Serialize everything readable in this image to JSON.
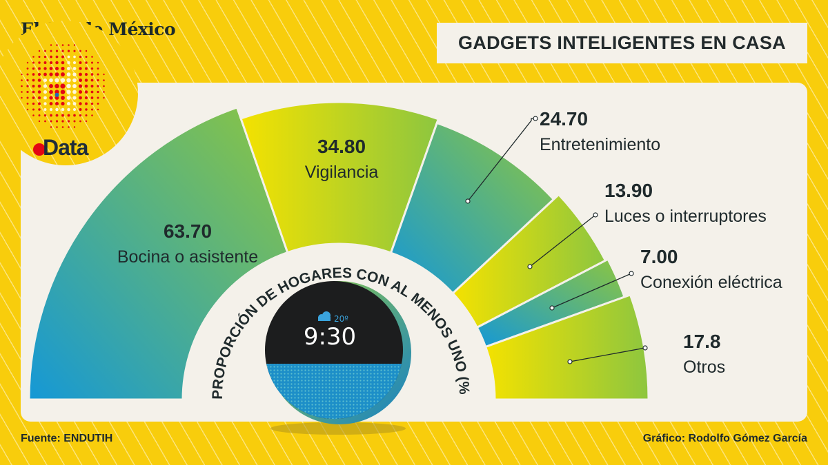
{
  "brand": {
    "masthead": "El Sol de México",
    "section": "Data"
  },
  "title": "GADGETS INTELIGENTES EN CASA",
  "footer": {
    "source": "Fuente: ENDUTIH",
    "credit": "Gráfico: Rodolfo Gómez García"
  },
  "device": {
    "time": "9:30",
    "temperature": "20º",
    "icon": "cloud-rain-icon"
  },
  "colors": {
    "background": "#f8cd0c",
    "card": "#f4f1ea",
    "blue": "#1598d6",
    "green": "#8dc63f",
    "yellow": "#f4e200",
    "text": "#1f2a2c",
    "red": "#e30613"
  },
  "chart_data": {
    "type": "pie",
    "variant": "semicircle",
    "title": "PROPORCIÓN DE HOGARES CON AL MENOS UNO (%)",
    "categories": [
      "Bocina o asistente",
      "Vigilancia",
      "Entretenimiento",
      "Luces o interruptores",
      "Conexión eléctrica",
      "Otros"
    ],
    "values": [
      63.7,
      34.8,
      24.7,
      13.9,
      7.0,
      17.8
    ],
    "value_labels": [
      "63.70",
      "34.80",
      "24.70",
      "13.90",
      "7.00",
      "17.8"
    ],
    "gradients": [
      "blue-green",
      "yellow-green",
      "blue-green",
      "yellow-green",
      "blue-green",
      "yellow-green"
    ]
  }
}
